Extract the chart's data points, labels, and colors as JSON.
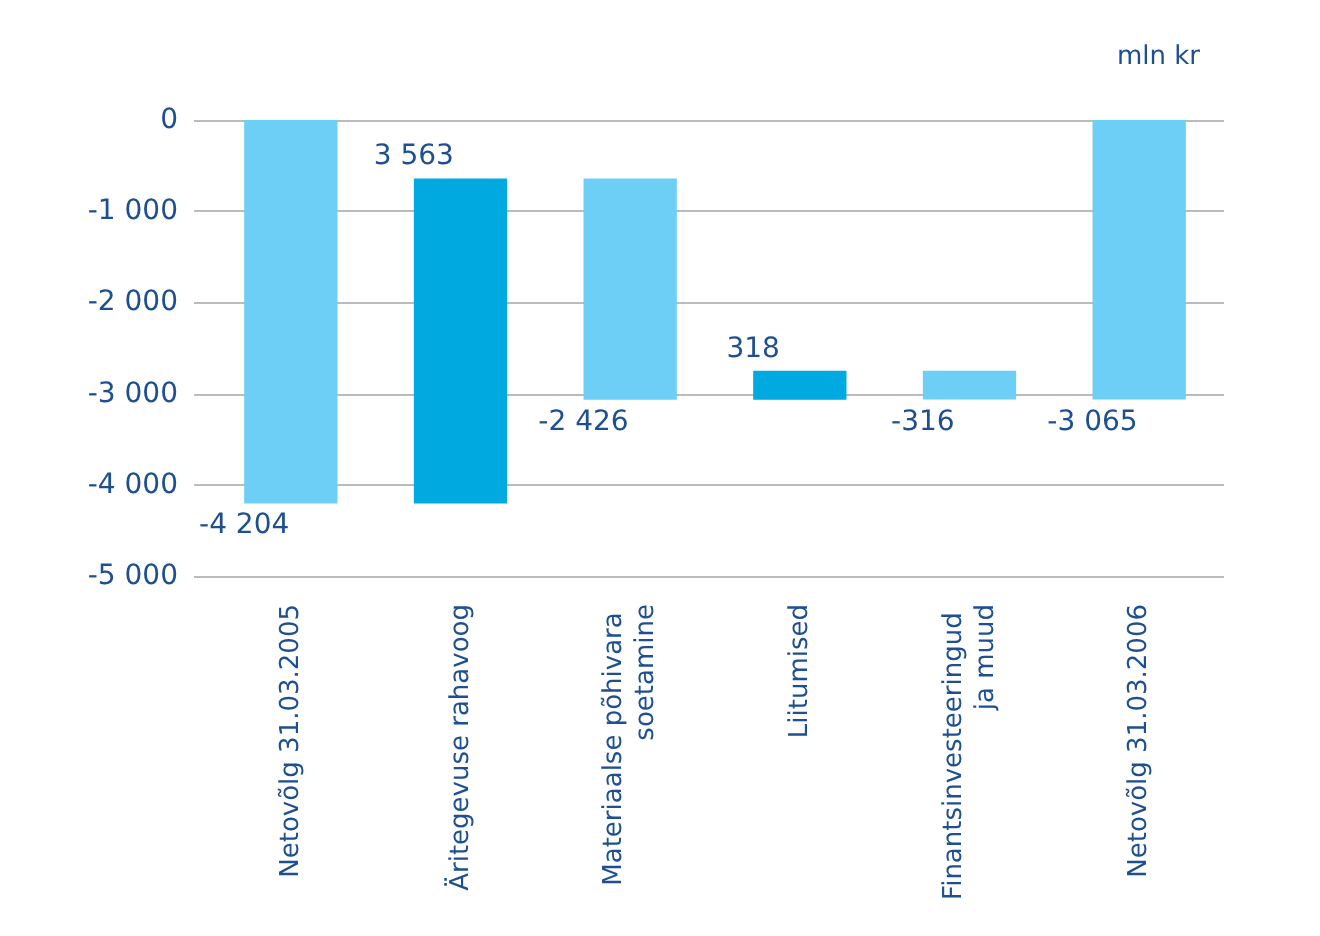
{
  "chart_data": {
    "type": "bar",
    "ylabel": "mln kr",
    "categories": [
      "Netovõlg 31.03.2005",
      "Äritegevuse rahavoog",
      "Materiaalse põhivara soetamine",
      "Liitumised",
      "Finantsinvesteeringud ja muud",
      "Netovõlg 31.03.2006"
    ],
    "values": [
      -4204,
      3563,
      -2426,
      318,
      -316,
      -3065
    ],
    "base": [
      0,
      -4204,
      -641,
      -3067,
      -2749,
      0
    ],
    "colors": [
      "#6dcff6",
      "#00a9e0",
      "#6dcff6",
      "#00a9e0",
      "#6dcff6",
      "#6dcff6"
    ],
    "value_labels": [
      "-4 204",
      "3 563",
      "-2 426",
      "318",
      "-316",
      "-3 065"
    ],
    "ylim": [
      -5000,
      0
    ],
    "yticks": [
      {
        "value": -5000,
        "label": "-5 000"
      },
      {
        "value": -4000,
        "label": "-4 000"
      },
      {
        "value": -3000,
        "label": "-3 000"
      },
      {
        "value": -2000,
        "label": "-2 000"
      },
      {
        "value": -1000,
        "label": "-1 000"
      },
      0
    ],
    "grid": "y"
  }
}
